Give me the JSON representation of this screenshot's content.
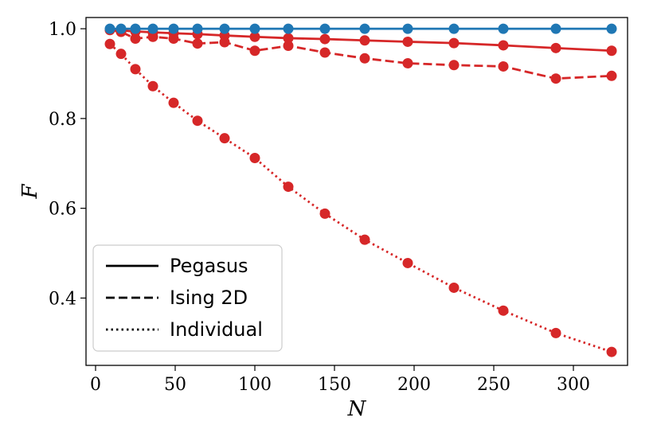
{
  "chart_data": {
    "type": "line",
    "title": "",
    "xlabel": "N",
    "ylabel": "F",
    "xlim": [
      -6,
      334
    ],
    "ylim": [
      0.25,
      1.025
    ],
    "xticks": [
      0,
      50,
      100,
      150,
      200,
      250,
      300
    ],
    "yticks": [
      0.4,
      0.6,
      0.8,
      1.0
    ],
    "xtick_labels": [
      "0",
      "50",
      "100",
      "150",
      "200",
      "250",
      "300"
    ],
    "ytick_labels": [
      "0.4",
      "0.6",
      "0.8",
      "1.0"
    ],
    "grid": false,
    "legend_position": "lower-left",
    "x": [
      9,
      16,
      25,
      36,
      49,
      64,
      81,
      100,
      121,
      144,
      169,
      196,
      225,
      256,
      289,
      324
    ],
    "series": [
      {
        "name": "Pegasus",
        "style": "solid",
        "color": "#d62728",
        "values": [
          0.998,
          0.996,
          0.994,
          0.992,
          0.99,
          0.988,
          0.985,
          0.982,
          0.979,
          0.977,
          0.974,
          0.971,
          0.968,
          0.963,
          0.957,
          0.951
        ]
      },
      {
        "name": "Ising 2D",
        "style": "dashed",
        "color": "#d62728",
        "values": [
          0.997,
          0.993,
          0.978,
          0.982,
          0.978,
          0.967,
          0.97,
          0.951,
          0.962,
          0.947,
          0.934,
          0.923,
          0.919,
          0.916,
          0.889,
          0.895
        ]
      },
      {
        "name": "Individual",
        "style": "dotted",
        "color": "#d62728",
        "values": [
          0.966,
          0.944,
          0.91,
          0.872,
          0.835,
          0.795,
          0.756,
          0.712,
          0.648,
          0.588,
          0.53,
          0.478,
          0.423,
          0.372,
          0.322,
          0.28
        ]
      },
      {
        "name": "",
        "style": "solid",
        "color": "#1f77b4",
        "values": [
          1.0,
          1.0,
          1.0,
          1.0,
          1.0,
          1.0,
          1.0,
          1.0,
          1.0,
          1.0,
          1.0,
          1.0,
          1.0,
          1.0,
          1.0,
          1.0
        ]
      }
    ],
    "legend": [
      {
        "label": "Pegasus",
        "style": "solid"
      },
      {
        "label": "Ising 2D",
        "style": "dashed"
      },
      {
        "label": "Individual",
        "style": "dotted"
      }
    ]
  }
}
